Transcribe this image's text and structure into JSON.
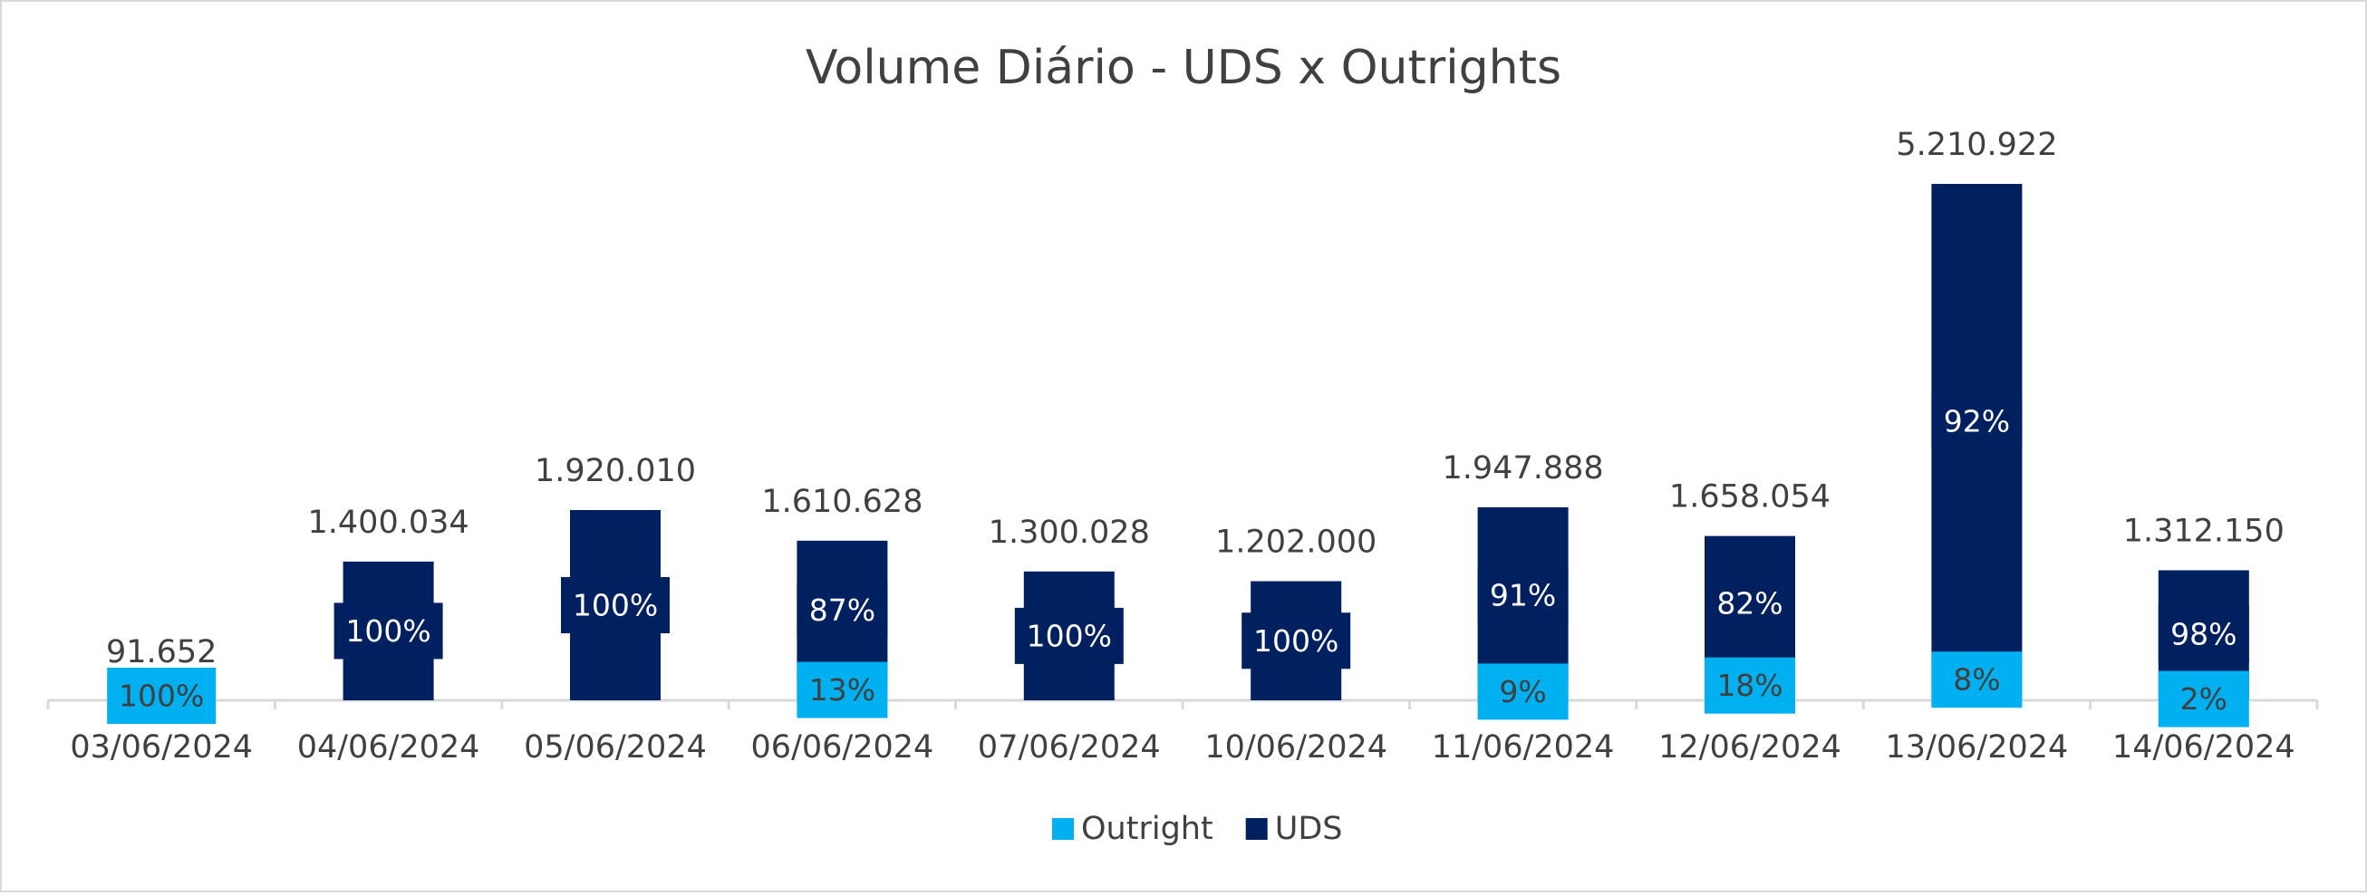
{
  "chart_data": {
    "type": "stacked_bar",
    "title": "Volume Diário - UDS x Outrights",
    "categories": [
      "03/06/2024",
      "04/06/2024",
      "05/06/2024",
      "06/06/2024",
      "07/06/2024",
      "10/06/2024",
      "11/06/2024",
      "12/06/2024",
      "13/06/2024",
      "14/06/2024"
    ],
    "series": [
      {
        "name": "Outright",
        "color": "#00b0f0",
        "label_color": "#404040",
        "values": [
          100,
          null,
          null,
          13,
          null,
          null,
          9,
          18,
          8,
          2
        ],
        "value_labels": [
          "100%",
          null,
          null,
          "13%",
          null,
          null,
          "9%",
          "18%",
          "8%",
          "2%"
        ]
      },
      {
        "name": "UDS",
        "color": "#002060",
        "label_color": "#ffffff",
        "values": [
          null,
          100,
          100,
          87,
          100,
          100,
          91,
          82,
          92,
          98
        ],
        "value_labels": [
          null,
          "100%",
          "100%",
          "87%",
          "100%",
          "100%",
          "91%",
          "82%",
          "92%",
          "98%"
        ]
      }
    ],
    "totals": {
      "values": [
        91652,
        1400034,
        1920010,
        1610628,
        1300028,
        1202000,
        1947888,
        1658054,
        5210922,
        1312150
      ],
      "value_labels": [
        "91.652",
        "1.400.034",
        "1.920.010",
        "1.610.628",
        "1.300.028",
        "1.202.000",
        "1.947.888",
        "1.658.054",
        "5.210.922",
        "1.312.150"
      ]
    },
    "legend": "bottom"
  }
}
